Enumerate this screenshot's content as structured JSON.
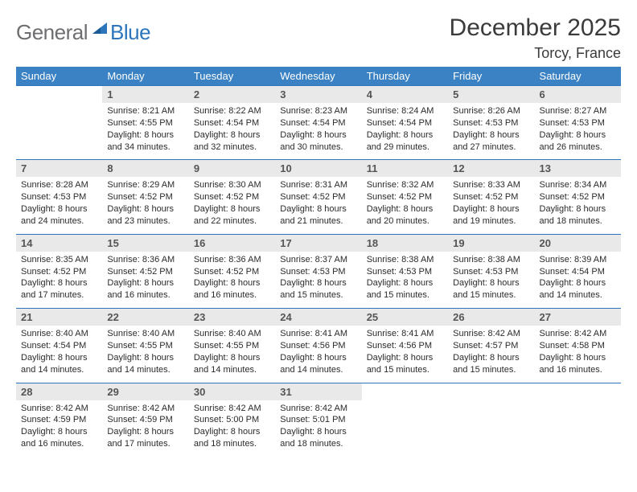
{
  "brand": {
    "part1": "General",
    "part2": "Blue"
  },
  "title": "December 2025",
  "location": "Torcy, France",
  "colors": {
    "header_bg": "#3a82c4",
    "daynum_bg": "#e9e9e9",
    "row_border": "#2d76bb",
    "logo_gray": "#6d6e71",
    "logo_blue": "#2d76bb",
    "text": "#2b2b2b",
    "background": "#ffffff"
  },
  "typography": {
    "title_fontsize": 30,
    "location_fontsize": 18,
    "header_fontsize": 13,
    "daynum_fontsize": 13,
    "cell_fontsize": 11
  },
  "day_headers": [
    "Sunday",
    "Monday",
    "Tuesday",
    "Wednesday",
    "Thursday",
    "Friday",
    "Saturday"
  ],
  "weeks": [
    {
      "nums": [
        "",
        "1",
        "2",
        "3",
        "4",
        "5",
        "6"
      ],
      "cells": [
        {
          "blank": true
        },
        {
          "sunrise": "Sunrise: 8:21 AM",
          "sunset": "Sunset: 4:55 PM",
          "day1": "Daylight: 8 hours",
          "day2": "and 34 minutes."
        },
        {
          "sunrise": "Sunrise: 8:22 AM",
          "sunset": "Sunset: 4:54 PM",
          "day1": "Daylight: 8 hours",
          "day2": "and 32 minutes."
        },
        {
          "sunrise": "Sunrise: 8:23 AM",
          "sunset": "Sunset: 4:54 PM",
          "day1": "Daylight: 8 hours",
          "day2": "and 30 minutes."
        },
        {
          "sunrise": "Sunrise: 8:24 AM",
          "sunset": "Sunset: 4:54 PM",
          "day1": "Daylight: 8 hours",
          "day2": "and 29 minutes."
        },
        {
          "sunrise": "Sunrise: 8:26 AM",
          "sunset": "Sunset: 4:53 PM",
          "day1": "Daylight: 8 hours",
          "day2": "and 27 minutes."
        },
        {
          "sunrise": "Sunrise: 8:27 AM",
          "sunset": "Sunset: 4:53 PM",
          "day1": "Daylight: 8 hours",
          "day2": "and 26 minutes."
        }
      ]
    },
    {
      "nums": [
        "7",
        "8",
        "9",
        "10",
        "11",
        "12",
        "13"
      ],
      "cells": [
        {
          "sunrise": "Sunrise: 8:28 AM",
          "sunset": "Sunset: 4:53 PM",
          "day1": "Daylight: 8 hours",
          "day2": "and 24 minutes."
        },
        {
          "sunrise": "Sunrise: 8:29 AM",
          "sunset": "Sunset: 4:52 PM",
          "day1": "Daylight: 8 hours",
          "day2": "and 23 minutes."
        },
        {
          "sunrise": "Sunrise: 8:30 AM",
          "sunset": "Sunset: 4:52 PM",
          "day1": "Daylight: 8 hours",
          "day2": "and 22 minutes."
        },
        {
          "sunrise": "Sunrise: 8:31 AM",
          "sunset": "Sunset: 4:52 PM",
          "day1": "Daylight: 8 hours",
          "day2": "and 21 minutes."
        },
        {
          "sunrise": "Sunrise: 8:32 AM",
          "sunset": "Sunset: 4:52 PM",
          "day1": "Daylight: 8 hours",
          "day2": "and 20 minutes."
        },
        {
          "sunrise": "Sunrise: 8:33 AM",
          "sunset": "Sunset: 4:52 PM",
          "day1": "Daylight: 8 hours",
          "day2": "and 19 minutes."
        },
        {
          "sunrise": "Sunrise: 8:34 AM",
          "sunset": "Sunset: 4:52 PM",
          "day1": "Daylight: 8 hours",
          "day2": "and 18 minutes."
        }
      ]
    },
    {
      "nums": [
        "14",
        "15",
        "16",
        "17",
        "18",
        "19",
        "20"
      ],
      "cells": [
        {
          "sunrise": "Sunrise: 8:35 AM",
          "sunset": "Sunset: 4:52 PM",
          "day1": "Daylight: 8 hours",
          "day2": "and 17 minutes."
        },
        {
          "sunrise": "Sunrise: 8:36 AM",
          "sunset": "Sunset: 4:52 PM",
          "day1": "Daylight: 8 hours",
          "day2": "and 16 minutes."
        },
        {
          "sunrise": "Sunrise: 8:36 AM",
          "sunset": "Sunset: 4:52 PM",
          "day1": "Daylight: 8 hours",
          "day2": "and 16 minutes."
        },
        {
          "sunrise": "Sunrise: 8:37 AM",
          "sunset": "Sunset: 4:53 PM",
          "day1": "Daylight: 8 hours",
          "day2": "and 15 minutes."
        },
        {
          "sunrise": "Sunrise: 8:38 AM",
          "sunset": "Sunset: 4:53 PM",
          "day1": "Daylight: 8 hours",
          "day2": "and 15 minutes."
        },
        {
          "sunrise": "Sunrise: 8:38 AM",
          "sunset": "Sunset: 4:53 PM",
          "day1": "Daylight: 8 hours",
          "day2": "and 15 minutes."
        },
        {
          "sunrise": "Sunrise: 8:39 AM",
          "sunset": "Sunset: 4:54 PM",
          "day1": "Daylight: 8 hours",
          "day2": "and 14 minutes."
        }
      ]
    },
    {
      "nums": [
        "21",
        "22",
        "23",
        "24",
        "25",
        "26",
        "27"
      ],
      "cells": [
        {
          "sunrise": "Sunrise: 8:40 AM",
          "sunset": "Sunset: 4:54 PM",
          "day1": "Daylight: 8 hours",
          "day2": "and 14 minutes."
        },
        {
          "sunrise": "Sunrise: 8:40 AM",
          "sunset": "Sunset: 4:55 PM",
          "day1": "Daylight: 8 hours",
          "day2": "and 14 minutes."
        },
        {
          "sunrise": "Sunrise: 8:40 AM",
          "sunset": "Sunset: 4:55 PM",
          "day1": "Daylight: 8 hours",
          "day2": "and 14 minutes."
        },
        {
          "sunrise": "Sunrise: 8:41 AM",
          "sunset": "Sunset: 4:56 PM",
          "day1": "Daylight: 8 hours",
          "day2": "and 14 minutes."
        },
        {
          "sunrise": "Sunrise: 8:41 AM",
          "sunset": "Sunset: 4:56 PM",
          "day1": "Daylight: 8 hours",
          "day2": "and 15 minutes."
        },
        {
          "sunrise": "Sunrise: 8:42 AM",
          "sunset": "Sunset: 4:57 PM",
          "day1": "Daylight: 8 hours",
          "day2": "and 15 minutes."
        },
        {
          "sunrise": "Sunrise: 8:42 AM",
          "sunset": "Sunset: 4:58 PM",
          "day1": "Daylight: 8 hours",
          "day2": "and 16 minutes."
        }
      ]
    },
    {
      "nums": [
        "28",
        "29",
        "30",
        "31",
        "",
        "",
        ""
      ],
      "cells": [
        {
          "sunrise": "Sunrise: 8:42 AM",
          "sunset": "Sunset: 4:59 PM",
          "day1": "Daylight: 8 hours",
          "day2": "and 16 minutes."
        },
        {
          "sunrise": "Sunrise: 8:42 AM",
          "sunset": "Sunset: 4:59 PM",
          "day1": "Daylight: 8 hours",
          "day2": "and 17 minutes."
        },
        {
          "sunrise": "Sunrise: 8:42 AM",
          "sunset": "Sunset: 5:00 PM",
          "day1": "Daylight: 8 hours",
          "day2": "and 18 minutes."
        },
        {
          "sunrise": "Sunrise: 8:42 AM",
          "sunset": "Sunset: 5:01 PM",
          "day1": "Daylight: 8 hours",
          "day2": "and 18 minutes."
        },
        {
          "blank": true
        },
        {
          "blank": true
        },
        {
          "blank": true
        }
      ]
    }
  ]
}
